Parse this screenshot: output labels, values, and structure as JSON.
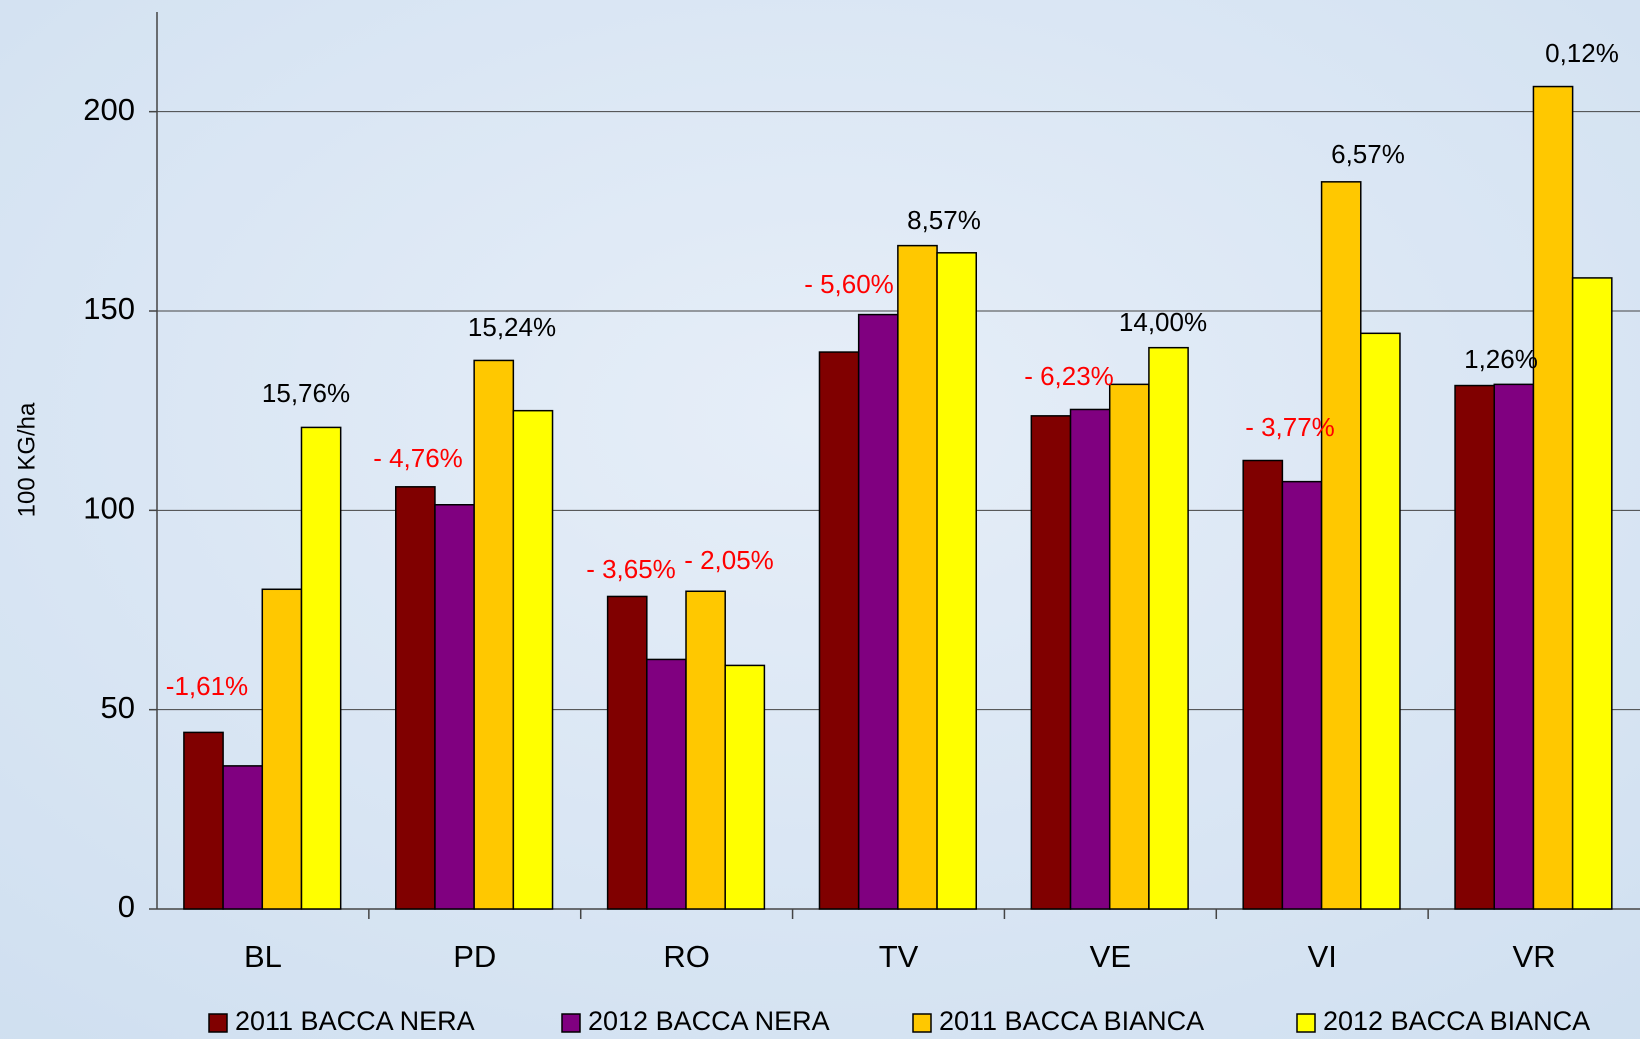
{
  "chart_data": {
    "type": "bar",
    "y_label": "100 KG/ha",
    "categories": [
      "BL",
      "PD",
      "RO",
      "TV",
      "VE",
      "VI",
      "VR"
    ],
    "series": [
      {
        "name": "2011 BACCA NERA",
        "color": "#800000",
        "values": [
          44.3,
          105.9,
          78.4,
          139.7,
          123.7,
          112.5,
          131.3
        ]
      },
      {
        "name": "2012 BACCA NERA",
        "color": "#800080",
        "values": [
          35.9,
          101.4,
          62.6,
          149.1,
          125.3,
          107.2,
          131.6
        ]
      },
      {
        "name": "2011 BACCA BIANCA",
        "color": "#ffc800",
        "values": [
          80.2,
          137.6,
          79.7,
          166.4,
          131.6,
          182.4,
          206.3
        ]
      },
      {
        "name": "2012 BACCA BIANCA",
        "color": "#ffff00",
        "values": [
          120.8,
          125.0,
          61.1,
          164.6,
          140.8,
          144.4,
          158.3
        ]
      }
    ],
    "ylim": [
      0,
      225
    ],
    "yticks": [
      0,
      50,
      100,
      150,
      200
    ],
    "grid": true,
    "legend": "bottom",
    "annotations": [
      {
        "text": "-1,61%",
        "color": "#ff0000"
      },
      {
        "text": "15,76%",
        "color": "#000000"
      },
      {
        "text": "- 4,76%",
        "color": "#ff0000"
      },
      {
        "text": "15,24%",
        "color": "#000000"
      },
      {
        "text": "- 3,65%",
        "color": "#ff0000"
      },
      {
        "text": "- 2,05%",
        "color": "#ff0000"
      },
      {
        "text": "- 5,60%",
        "color": "#ff0000"
      },
      {
        "text": "8,57%",
        "color": "#000000"
      },
      {
        "text": "- 6,23%",
        "color": "#ff0000"
      },
      {
        "text": "14,00%",
        "color": "#000000"
      },
      {
        "text": "- 3,77%",
        "color": "#ff0000"
      },
      {
        "text": "6,57%",
        "color": "#000000"
      },
      {
        "text": "1,26%",
        "color": "#000000"
      },
      {
        "text": "0,12%",
        "color": "#000000"
      }
    ]
  }
}
